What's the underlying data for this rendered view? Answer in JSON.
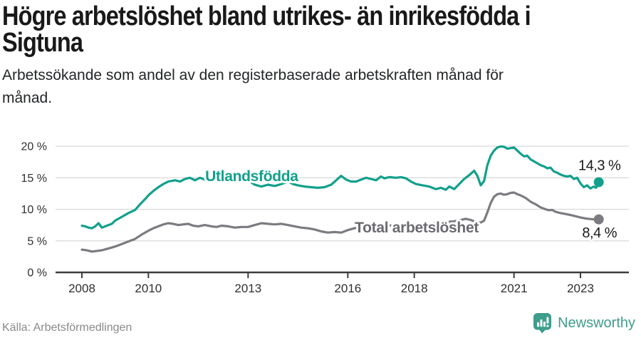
{
  "footer": {
    "source": "Källa: Arbetsförmedlingen",
    "brand": "Newsworthy"
  },
  "brand_color": "#3f9d8b",
  "chart_data": {
    "type": "line",
    "title": "Högre arbetslöshet bland utrikes- än inrikesfödda i\nSigtuna",
    "subtitle": "Arbetssökande som andel av den registerbaserade arbetskraften månad för\nmånad.",
    "x_unit": "year, monthly data",
    "xlim": [
      2008,
      2023.55
    ],
    "ylim": [
      0,
      20
    ],
    "grid": true,
    "legend": "inline-labels",
    "x_tick_years": [
      2008,
      2010,
      2013,
      2016,
      2018,
      2021,
      2023
    ],
    "x_tick_labels": [
      "2008",
      "2010",
      "2013",
      "2016",
      "2018",
      "2021",
      "2023"
    ],
    "y_ticks": [
      0,
      5,
      10,
      15,
      20
    ],
    "y_tick_labels": [
      "0 %",
      "5 %",
      "10 %",
      "15 %",
      "20 %"
    ],
    "series": [
      {
        "id": "utlandsfodda",
        "name": "Utlandsfödda",
        "color": "#12a08c",
        "label_color": "#12a08c",
        "label_pos": {
          "x_year": 2011.71,
          "y_pct": 14.46
        },
        "end_value": 14.3,
        "end_label": "14,3 %",
        "points": [
          [
            2008.0,
            7.4
          ],
          [
            2008.1,
            7.3
          ],
          [
            2008.2,
            7.1
          ],
          [
            2008.3,
            7.0
          ],
          [
            2008.4,
            7.3
          ],
          [
            2008.5,
            7.8
          ],
          [
            2008.6,
            7.1
          ],
          [
            2008.75,
            7.4
          ],
          [
            2008.9,
            7.7
          ],
          [
            2009.0,
            8.2
          ],
          [
            2009.2,
            8.8
          ],
          [
            2009.4,
            9.4
          ],
          [
            2009.6,
            9.9
          ],
          [
            2009.75,
            10.8
          ],
          [
            2009.9,
            11.6
          ],
          [
            2010.0,
            12.2
          ],
          [
            2010.15,
            12.9
          ],
          [
            2010.3,
            13.5
          ],
          [
            2010.45,
            14.0
          ],
          [
            2010.6,
            14.4
          ],
          [
            2010.8,
            14.6
          ],
          [
            2010.95,
            14.4
          ],
          [
            2011.1,
            14.8
          ],
          [
            2011.25,
            15.0
          ],
          [
            2011.4,
            14.6
          ],
          [
            2011.55,
            15.0
          ],
          [
            2011.7,
            14.7
          ],
          [
            2011.85,
            14.5
          ],
          [
            2012.0,
            14.9
          ],
          [
            2012.15,
            15.1
          ],
          [
            2012.3,
            14.6
          ],
          [
            2012.45,
            15.0
          ],
          [
            2012.6,
            14.4
          ],
          [
            2012.75,
            14.7
          ],
          [
            2012.9,
            14.3
          ],
          [
            2013.05,
            14.4
          ],
          [
            2013.2,
            13.9
          ],
          [
            2013.4,
            13.6
          ],
          [
            2013.6,
            13.9
          ],
          [
            2013.8,
            13.7
          ],
          [
            2014.0,
            14.0
          ],
          [
            2014.2,
            14.4
          ],
          [
            2014.35,
            14.0
          ],
          [
            2014.5,
            13.8
          ],
          [
            2014.7,
            13.6
          ],
          [
            2014.9,
            13.5
          ],
          [
            2015.1,
            13.4
          ],
          [
            2015.3,
            13.5
          ],
          [
            2015.5,
            13.9
          ],
          [
            2015.65,
            14.6
          ],
          [
            2015.8,
            15.3
          ],
          [
            2015.95,
            14.7
          ],
          [
            2016.1,
            14.4
          ],
          [
            2016.25,
            14.4
          ],
          [
            2016.4,
            14.7
          ],
          [
            2016.55,
            15.0
          ],
          [
            2016.7,
            14.8
          ],
          [
            2016.85,
            14.6
          ],
          [
            2017.0,
            15.2
          ],
          [
            2017.1,
            14.9
          ],
          [
            2017.25,
            15.1
          ],
          [
            2017.45,
            15.0
          ],
          [
            2017.6,
            15.1
          ],
          [
            2017.75,
            14.9
          ],
          [
            2017.9,
            14.4
          ],
          [
            2018.05,
            14.0
          ],
          [
            2018.25,
            13.8
          ],
          [
            2018.45,
            13.6
          ],
          [
            2018.65,
            13.2
          ],
          [
            2018.8,
            13.4
          ],
          [
            2018.95,
            13.1
          ],
          [
            2019.05,
            13.6
          ],
          [
            2019.2,
            13.2
          ],
          [
            2019.35,
            14.0
          ],
          [
            2019.5,
            14.8
          ],
          [
            2019.65,
            15.4
          ],
          [
            2019.8,
            16.1
          ],
          [
            2019.9,
            15.3
          ],
          [
            2020.0,
            13.8
          ],
          [
            2020.1,
            14.5
          ],
          [
            2020.2,
            17.0
          ],
          [
            2020.3,
            18.5
          ],
          [
            2020.4,
            19.3
          ],
          [
            2020.5,
            19.8
          ],
          [
            2020.6,
            19.95
          ],
          [
            2020.7,
            19.9
          ],
          [
            2020.8,
            19.6
          ],
          [
            2020.9,
            19.7
          ],
          [
            2021.0,
            19.8
          ],
          [
            2021.1,
            19.3
          ],
          [
            2021.2,
            18.8
          ],
          [
            2021.3,
            18.4
          ],
          [
            2021.4,
            18.5
          ],
          [
            2021.5,
            17.9
          ],
          [
            2021.6,
            17.6
          ],
          [
            2021.7,
            17.3
          ],
          [
            2021.8,
            17.0
          ],
          [
            2021.9,
            16.8
          ],
          [
            2022.0,
            16.5
          ],
          [
            2022.1,
            16.6
          ],
          [
            2022.2,
            16.0
          ],
          [
            2022.3,
            15.8
          ],
          [
            2022.4,
            15.5
          ],
          [
            2022.5,
            15.3
          ],
          [
            2022.6,
            15.2
          ],
          [
            2022.7,
            15.3
          ],
          [
            2022.8,
            14.8
          ],
          [
            2022.9,
            15.0
          ],
          [
            2023.0,
            14.1
          ],
          [
            2023.1,
            13.5
          ],
          [
            2023.2,
            13.8
          ],
          [
            2023.3,
            13.3
          ],
          [
            2023.4,
            13.6
          ],
          [
            2023.47,
            13.4
          ],
          [
            2023.55,
            14.3
          ]
        ]
      },
      {
        "id": "total-arbetsloshet",
        "name": "Total arbetslöshet",
        "color": "#7b7b80",
        "label_color": "#6a6a70",
        "label_pos": {
          "x_year": 2016.21,
          "y_pct": 6.33
        },
        "end_value": 8.4,
        "end_label": "8,4 %",
        "points": [
          [
            2008.0,
            3.6
          ],
          [
            2008.15,
            3.5
          ],
          [
            2008.3,
            3.3
          ],
          [
            2008.45,
            3.4
          ],
          [
            2008.6,
            3.5
          ],
          [
            2008.8,
            3.8
          ],
          [
            2009.0,
            4.1
          ],
          [
            2009.2,
            4.5
          ],
          [
            2009.4,
            4.9
          ],
          [
            2009.6,
            5.3
          ],
          [
            2009.8,
            6.0
          ],
          [
            2010.0,
            6.6
          ],
          [
            2010.15,
            7.0
          ],
          [
            2010.3,
            7.3
          ],
          [
            2010.45,
            7.6
          ],
          [
            2010.6,
            7.8
          ],
          [
            2010.75,
            7.7
          ],
          [
            2010.9,
            7.5
          ],
          [
            2011.05,
            7.6
          ],
          [
            2011.2,
            7.7
          ],
          [
            2011.35,
            7.4
          ],
          [
            2011.5,
            7.3
          ],
          [
            2011.7,
            7.5
          ],
          [
            2011.9,
            7.3
          ],
          [
            2012.05,
            7.2
          ],
          [
            2012.2,
            7.4
          ],
          [
            2012.4,
            7.3
          ],
          [
            2012.6,
            7.1
          ],
          [
            2012.8,
            7.2
          ],
          [
            2013.0,
            7.2
          ],
          [
            2013.2,
            7.5
          ],
          [
            2013.4,
            7.8
          ],
          [
            2013.6,
            7.7
          ],
          [
            2013.8,
            7.6
          ],
          [
            2014.0,
            7.7
          ],
          [
            2014.2,
            7.5
          ],
          [
            2014.4,
            7.3
          ],
          [
            2014.6,
            7.1
          ],
          [
            2014.8,
            7.0
          ],
          [
            2015.0,
            6.8
          ],
          [
            2015.2,
            6.5
          ],
          [
            2015.4,
            6.3
          ],
          [
            2015.6,
            6.4
          ],
          [
            2015.8,
            6.3
          ],
          [
            2016.0,
            6.7
          ],
          [
            2016.2,
            7.0
          ],
          [
            2016.4,
            7.2
          ],
          [
            2016.6,
            7.3
          ],
          [
            2016.9,
            7.3
          ],
          [
            2017.2,
            7.4
          ],
          [
            2017.5,
            7.5
          ],
          [
            2017.8,
            7.6
          ],
          [
            2018.1,
            7.6
          ],
          [
            2018.4,
            7.7
          ],
          [
            2018.7,
            7.8
          ],
          [
            2019.0,
            8.0
          ],
          [
            2019.2,
            8.1
          ],
          [
            2019.4,
            8.3
          ],
          [
            2019.55,
            8.5
          ],
          [
            2019.7,
            8.3
          ],
          [
            2019.85,
            8.0
          ],
          [
            2020.0,
            7.9
          ],
          [
            2020.1,
            8.2
          ],
          [
            2020.2,
            9.5
          ],
          [
            2020.3,
            11.0
          ],
          [
            2020.4,
            12.0
          ],
          [
            2020.5,
            12.4
          ],
          [
            2020.6,
            12.5
          ],
          [
            2020.7,
            12.3
          ],
          [
            2020.8,
            12.4
          ],
          [
            2020.9,
            12.6
          ],
          [
            2021.0,
            12.65
          ],
          [
            2021.1,
            12.4
          ],
          [
            2021.2,
            12.2
          ],
          [
            2021.35,
            11.8
          ],
          [
            2021.5,
            11.2
          ],
          [
            2021.65,
            10.8
          ],
          [
            2021.8,
            10.3
          ],
          [
            2021.95,
            10.0
          ],
          [
            2022.05,
            9.85
          ],
          [
            2022.15,
            9.9
          ],
          [
            2022.25,
            9.6
          ],
          [
            2022.4,
            9.4
          ],
          [
            2022.55,
            9.25
          ],
          [
            2022.7,
            9.1
          ],
          [
            2022.85,
            8.9
          ],
          [
            2023.0,
            8.7
          ],
          [
            2023.15,
            8.55
          ],
          [
            2023.3,
            8.45
          ],
          [
            2023.45,
            8.4
          ],
          [
            2023.55,
            8.4
          ]
        ]
      }
    ]
  }
}
